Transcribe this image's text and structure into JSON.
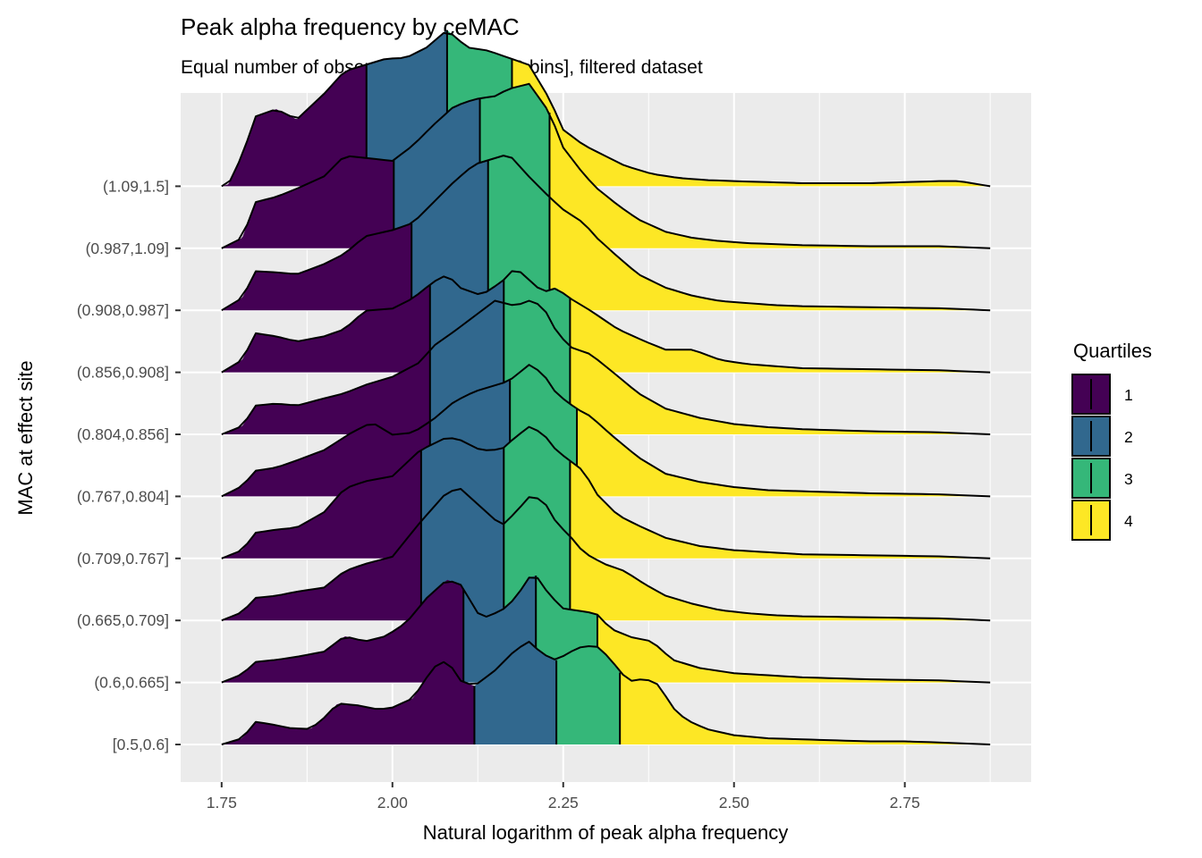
{
  "chart_data": {
    "type": "ridgeline",
    "title": "Peak alpha frequency by ceMAC",
    "subtitle": "Equal number of observations per bin [10 bins], filtered dataset",
    "xlabel": "Natural logarithm of peak alpha frequency",
    "ylabel": "MAC at effect site",
    "xlim": [
      1.69,
      2.935
    ],
    "x_ticks": [
      1.75,
      2.0,
      2.25,
      2.5,
      2.75
    ],
    "x_tick_labels": [
      "1.75",
      "2.00",
      "2.25",
      "2.50",
      "2.75"
    ],
    "grid": true,
    "legend": {
      "title": "Quartiles",
      "position": "right",
      "entries": [
        {
          "label": "1",
          "color": "#440154"
        },
        {
          "label": "2",
          "color": "#31688E"
        },
        {
          "label": "3",
          "color": "#35B779"
        },
        {
          "label": "4",
          "color": "#FDE725"
        }
      ]
    },
    "categories": [
      "[0.5,0.6]",
      "(0.6,0.665]",
      "(0.665,0.709]",
      "(0.709,0.767]",
      "(0.767,0.804]",
      "(0.804,0.856]",
      "(0.856,0.908]",
      "(0.908,0.987]",
      "(0.987,1.09]",
      "(1.09,1.5]"
    ],
    "density_x_range": [
      1.75,
      2.875
    ],
    "series": [
      {
        "category": "[0.5,0.6]",
        "quartile_breaks": [
          2.12,
          2.24,
          2.333
        ],
        "density_x": [
          1.75,
          1.78,
          1.8,
          1.82,
          1.85,
          1.88,
          1.9,
          1.92,
          1.95,
          1.98,
          2.0,
          2.03,
          2.06,
          2.08,
          2.1,
          2.12,
          2.15,
          2.18,
          2.2,
          2.22,
          2.24,
          2.26,
          2.28,
          2.3,
          2.32,
          2.333,
          2.35,
          2.37,
          2.39,
          2.41,
          2.43,
          2.46,
          2.5,
          2.55,
          2.6,
          2.65,
          2.7,
          2.75,
          2.8,
          2.875
        ],
        "density": [
          0.0,
          0.06,
          0.22,
          0.2,
          0.16,
          0.15,
          0.26,
          0.4,
          0.38,
          0.34,
          0.36,
          0.45,
          0.75,
          0.82,
          0.62,
          0.57,
          0.72,
          0.92,
          1.0,
          0.88,
          0.82,
          0.9,
          0.96,
          0.95,
          0.83,
          0.7,
          0.62,
          0.64,
          0.58,
          0.36,
          0.24,
          0.15,
          0.09,
          0.06,
          0.05,
          0.04,
          0.03,
          0.03,
          0.02,
          0.0
        ]
      },
      {
        "category": "(0.6,0.665]",
        "quartile_breaks": [
          2.104,
          2.21,
          2.3
        ],
        "density_x": [
          1.75,
          1.78,
          1.8,
          1.83,
          1.86,
          1.9,
          1.93,
          1.96,
          1.99,
          2.02,
          2.05,
          2.08,
          2.1,
          2.13,
          2.16,
          2.18,
          2.2,
          2.21,
          2.23,
          2.25,
          2.27,
          2.29,
          2.3,
          2.32,
          2.35,
          2.38,
          2.41,
          2.45,
          2.5,
          2.55,
          2.6,
          2.7,
          2.8,
          2.875
        ],
        "density": [
          0.0,
          0.08,
          0.2,
          0.22,
          0.25,
          0.3,
          0.45,
          0.4,
          0.45,
          0.58,
          0.82,
          1.0,
          0.95,
          0.62,
          0.7,
          0.82,
          1.02,
          1.04,
          0.85,
          0.72,
          0.7,
          0.68,
          0.66,
          0.52,
          0.44,
          0.4,
          0.22,
          0.14,
          0.09,
          0.07,
          0.05,
          0.03,
          0.02,
          0.0
        ]
      },
      {
        "category": "(0.665,0.709]",
        "quartile_breaks": [
          2.042,
          2.163,
          2.26
        ],
        "density_x": [
          1.75,
          1.78,
          1.8,
          1.83,
          1.86,
          1.9,
          1.93,
          1.96,
          2.0,
          2.04,
          2.08,
          2.1,
          2.13,
          2.16,
          2.18,
          2.2,
          2.22,
          2.24,
          2.26,
          2.28,
          2.31,
          2.34,
          2.37,
          2.4,
          2.44,
          2.48,
          2.52,
          2.56,
          2.6,
          2.7,
          2.8,
          2.875
        ],
        "density": [
          0.0,
          0.08,
          0.22,
          0.24,
          0.28,
          0.32,
          0.48,
          0.55,
          0.62,
          0.95,
          1.25,
          1.28,
          1.1,
          0.92,
          1.05,
          1.2,
          1.18,
          0.95,
          0.82,
          0.66,
          0.55,
          0.48,
          0.35,
          0.24,
          0.16,
          0.1,
          0.07,
          0.05,
          0.04,
          0.03,
          0.02,
          0.0
        ]
      },
      {
        "category": "(0.709,0.767]",
        "quartile_breaks": [
          2.042,
          2.163,
          2.26
        ],
        "density_x": [
          1.75,
          1.78,
          1.8,
          1.83,
          1.86,
          1.9,
          1.93,
          1.96,
          2.0,
          2.04,
          2.08,
          2.1,
          2.13,
          2.16,
          2.18,
          2.2,
          2.22,
          2.24,
          2.26,
          2.28,
          2.3,
          2.33,
          2.36,
          2.4,
          2.45,
          2.5,
          2.55,
          2.6,
          2.7,
          2.8,
          2.875
        ],
        "density": [
          0.0,
          0.08,
          0.25,
          0.28,
          0.3,
          0.45,
          0.68,
          0.75,
          0.8,
          1.05,
          1.18,
          1.15,
          1.05,
          1.06,
          1.18,
          1.28,
          1.22,
          1.05,
          0.95,
          0.85,
          0.62,
          0.42,
          0.32,
          0.2,
          0.12,
          0.08,
          0.06,
          0.04,
          0.03,
          0.02,
          0.0
        ]
      },
      {
        "category": "(0.767,0.804]",
        "quartile_breaks": [
          2.055,
          2.172,
          2.27
        ],
        "density_x": [
          1.75,
          1.78,
          1.8,
          1.83,
          1.86,
          1.9,
          1.94,
          1.97,
          2.0,
          2.03,
          2.06,
          2.09,
          2.12,
          2.15,
          2.17,
          2.2,
          2.22,
          2.24,
          2.26,
          2.27,
          2.29,
          2.32,
          2.36,
          2.4,
          2.45,
          2.5,
          2.55,
          2.6,
          2.7,
          2.8,
          2.875
        ],
        "density": [
          0.0,
          0.1,
          0.25,
          0.28,
          0.35,
          0.45,
          0.62,
          0.72,
          0.6,
          0.62,
          0.75,
          0.92,
          1.02,
          1.08,
          1.12,
          1.28,
          1.2,
          1.0,
          0.9,
          0.85,
          0.78,
          0.6,
          0.38,
          0.22,
          0.14,
          0.09,
          0.06,
          0.05,
          0.03,
          0.02,
          0.0
        ]
      },
      {
        "category": "(0.804,0.856]",
        "quartile_breaks": [
          2.055,
          2.163,
          2.26
        ],
        "density_x": [
          1.75,
          1.78,
          1.8,
          1.83,
          1.86,
          1.9,
          1.93,
          1.96,
          2.0,
          2.04,
          2.06,
          2.09,
          2.12,
          2.15,
          2.18,
          2.2,
          2.22,
          2.24,
          2.26,
          2.29,
          2.32,
          2.36,
          2.4,
          2.45,
          2.5,
          2.55,
          2.6,
          2.7,
          2.8,
          2.875
        ],
        "density": [
          0.0,
          0.08,
          0.28,
          0.3,
          0.28,
          0.35,
          0.4,
          0.48,
          0.56,
          0.7,
          0.86,
          1.0,
          1.15,
          1.3,
          1.25,
          1.3,
          1.25,
          1.0,
          0.85,
          0.78,
          0.62,
          0.4,
          0.25,
          0.16,
          0.1,
          0.07,
          0.05,
          0.03,
          0.02,
          0.0
        ]
      },
      {
        "category": "(0.856,0.908]",
        "quartile_breaks": [
          2.055,
          2.163,
          2.26
        ],
        "density_x": [
          1.75,
          1.78,
          1.8,
          1.83,
          1.86,
          1.9,
          1.93,
          1.96,
          2.0,
          2.03,
          2.06,
          2.08,
          2.1,
          2.13,
          2.16,
          2.18,
          2.2,
          2.22,
          2.24,
          2.26,
          2.29,
          2.33,
          2.37,
          2.4,
          2.44,
          2.48,
          2.52,
          2.56,
          2.6,
          2.7,
          2.8,
          2.875
        ],
        "density": [
          0.0,
          0.12,
          0.38,
          0.35,
          0.3,
          0.35,
          0.42,
          0.6,
          0.62,
          0.72,
          0.88,
          0.95,
          0.82,
          0.75,
          0.88,
          1.02,
          0.9,
          0.78,
          0.82,
          0.72,
          0.6,
          0.42,
          0.3,
          0.22,
          0.22,
          0.12,
          0.08,
          0.06,
          0.04,
          0.03,
          0.02,
          0.0
        ]
      },
      {
        "category": "(0.908,0.987]",
        "quartile_breaks": [
          2.028,
          2.14,
          2.23
        ],
        "density_x": [
          1.75,
          1.78,
          1.8,
          1.83,
          1.86,
          1.9,
          1.93,
          1.96,
          2.0,
          2.03,
          2.06,
          2.09,
          2.12,
          2.15,
          2.17,
          2.2,
          2.23,
          2.25,
          2.28,
          2.3,
          2.33,
          2.36,
          2.4,
          2.44,
          2.48,
          2.52,
          2.56,
          2.6,
          2.7,
          2.8,
          2.875
        ],
        "density": [
          0.0,
          0.12,
          0.38,
          0.37,
          0.35,
          0.45,
          0.55,
          0.72,
          0.78,
          0.85,
          1.05,
          1.25,
          1.42,
          1.48,
          1.52,
          1.3,
          1.1,
          0.98,
          0.85,
          0.7,
          0.52,
          0.35,
          0.22,
          0.14,
          0.09,
          0.07,
          0.05,
          0.04,
          0.03,
          0.02,
          0.0
        ]
      },
      {
        "category": "(0.987,1.09]",
        "quartile_breaks": [
          2.002,
          2.128,
          2.23
        ],
        "density_x": [
          1.75,
          1.78,
          1.8,
          1.83,
          1.86,
          1.9,
          1.93,
          1.96,
          2.0,
          2.03,
          2.06,
          2.09,
          2.12,
          2.15,
          2.17,
          2.2,
          2.23,
          2.25,
          2.28,
          2.3,
          2.33,
          2.36,
          2.4,
          2.44,
          2.48,
          2.52,
          2.56,
          2.6,
          2.7,
          2.8,
          2.875
        ],
        "density": [
          0.0,
          0.1,
          0.45,
          0.5,
          0.58,
          0.7,
          0.9,
          0.88,
          0.85,
          1.0,
          1.2,
          1.38,
          1.45,
          1.48,
          1.55,
          1.6,
          1.32,
          0.98,
          0.72,
          0.58,
          0.42,
          0.28,
          0.16,
          0.1,
          0.07,
          0.05,
          0.04,
          0.03,
          0.02,
          0.02,
          0.0
        ]
      },
      {
        "category": "(1.09,1.5]",
        "quartile_breaks": [
          1.962,
          2.08,
          2.175
        ],
        "density_x": [
          1.75,
          1.76,
          1.78,
          1.8,
          1.83,
          1.86,
          1.9,
          1.93,
          1.96,
          1.99,
          2.02,
          2.05,
          2.08,
          2.11,
          2.14,
          2.17,
          2.2,
          2.23,
          2.25,
          2.28,
          2.31,
          2.34,
          2.38,
          2.42,
          2.46,
          2.5,
          2.55,
          2.6,
          2.7,
          2.8,
          2.83,
          2.875
        ],
        "density": [
          0.0,
          0.02,
          0.3,
          0.68,
          0.75,
          0.65,
          0.9,
          1.12,
          1.18,
          1.24,
          1.25,
          1.35,
          1.52,
          1.35,
          1.32,
          1.25,
          1.18,
          0.85,
          0.55,
          0.4,
          0.3,
          0.2,
          0.12,
          0.08,
          0.06,
          0.05,
          0.04,
          0.03,
          0.03,
          0.05,
          0.05,
          0.0
        ]
      }
    ]
  }
}
